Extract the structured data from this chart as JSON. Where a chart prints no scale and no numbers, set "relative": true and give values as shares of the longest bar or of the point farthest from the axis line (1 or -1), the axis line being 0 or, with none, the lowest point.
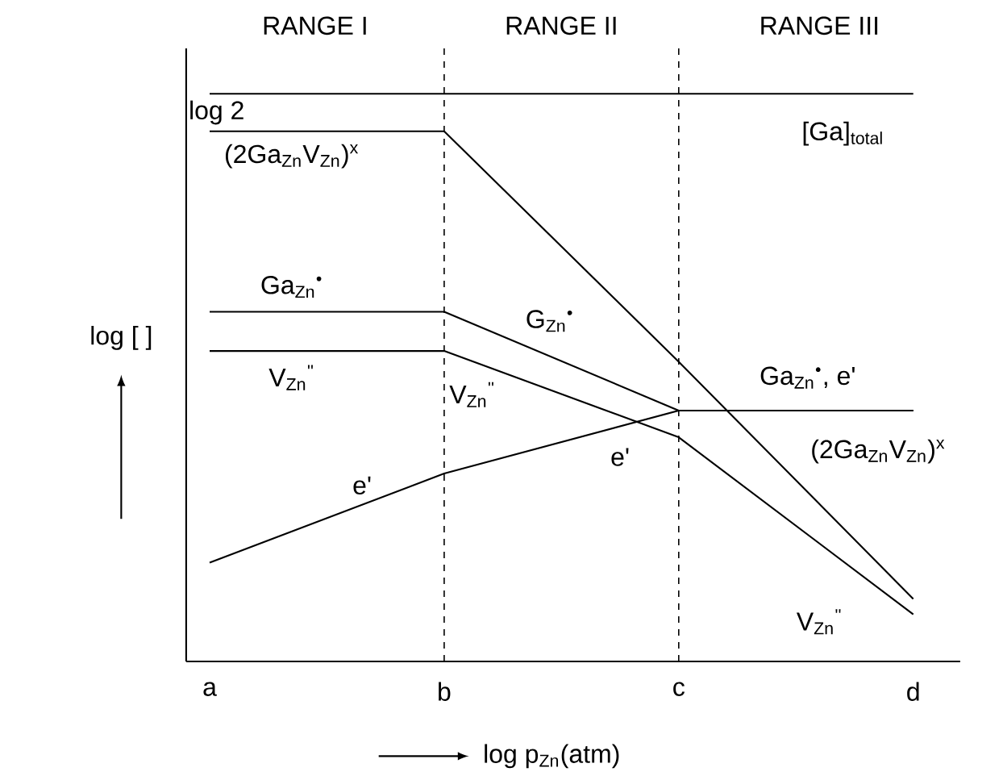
{
  "chart_data": {
    "type": "line",
    "relative": true,
    "categories": [
      "a",
      "b",
      "c",
      "d"
    ],
    "xlabel": "log p$_{Zn}$(atm)",
    "ylabel": "log [ ]",
    "series": [
      {
        "name": "[Ga]$_{total}$",
        "color": "#000000",
        "values": [
          1,
          1,
          1,
          1
        ]
      },
      {
        "name": "(2Ga$_{Zn}$V$_{Zn}$)$^{x}$",
        "color": "#000000",
        "values": [
          0.934,
          0.934,
          0.528,
          0.11
        ]
      },
      {
        "name": "Ga$_{Zn}$$^{•}$",
        "color": "#000000",
        "values": [
          0.616,
          0.616,
          0.442,
          0.442
        ]
      },
      {
        "name": "V$_{Zn}$$^{''}$",
        "color": "#000000",
        "values": [
          0.547,
          0.547,
          0.395,
          0.083
        ]
      },
      {
        "name": "e'",
        "color": "#000000",
        "values": [
          0.174,
          0.331,
          0.442,
          0.442
        ]
      }
    ],
    "ref_lines": [
      {
        "axis": "x",
        "value": "b",
        "line_style": "dashed",
        "color": "#000000"
      },
      {
        "axis": "x",
        "value": "c",
        "line_style": "dashed",
        "color": "#000000"
      }
    ],
    "annotations": [
      "RANGE I",
      "RANGE II",
      "RANGE III",
      "log 2",
      "(2Ga$_{Zn}$V$_{Zn}$)$^{x}$",
      "G$_{Zn}$$^{•}$",
      "Ga$_{Zn}$$^{•}$, e'",
      "V$_{Zn}$$^{''}$",
      "V$_{Zn}$$^{''}$",
      "e'"
    ]
  }
}
